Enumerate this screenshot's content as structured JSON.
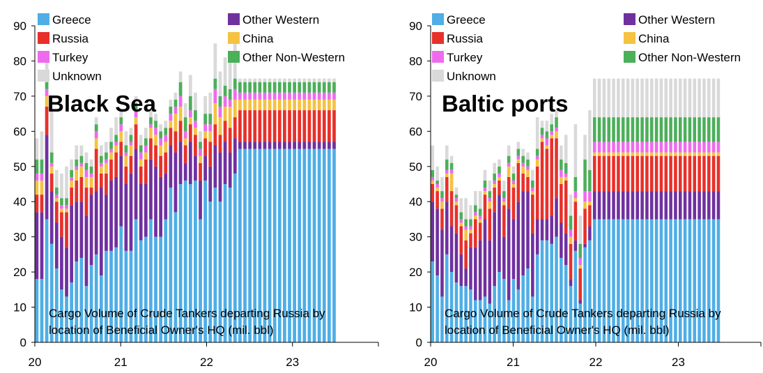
{
  "legend_labels": [
    "Greece",
    "Other Western",
    "Russia",
    "China",
    "Turkey",
    "Other Non-Western",
    "Unknown"
  ],
  "colors": {
    "Greece": "#4FAEE6",
    "Other Western": "#7030A0",
    "Russia": "#E8302A",
    "China": "#F5C242",
    "Turkey": "#EE6BEE",
    "Other Non-Western": "#4CAF5A",
    "Unknown": "#D9D9D9"
  },
  "chart_data": [
    {
      "type": "bar",
      "stacked": true,
      "title": "Black Sea",
      "annotation_line1": "Cargo Volume of Crude Tankers departing Russia by",
      "annotation_line2": "location of Beneficial Owner's HQ (mil. bbl)",
      "ylim": [
        0,
        90
      ],
      "yticks": [
        0,
        10,
        20,
        30,
        40,
        50,
        60,
        70,
        80,
        90
      ],
      "xticks": [
        {
          "label": "20",
          "week": 0
        },
        {
          "label": "21",
          "week": 52
        },
        {
          "label": "22",
          "week": 104
        },
        {
          "label": "23",
          "week": 156
        }
      ],
      "xmax": 208,
      "categories_note": "weekly bars, index in weeks from start of 2020",
      "weeks": [
        0,
        3,
        6,
        9,
        12,
        15,
        18,
        21,
        24,
        27,
        30,
        33,
        36,
        39,
        42,
        45,
        48,
        51,
        54,
        57,
        60,
        63,
        66,
        69,
        72,
        75,
        78,
        81,
        84,
        87,
        90,
        93,
        96,
        99,
        102,
        105,
        108,
        111,
        114,
        117,
        120,
        123,
        126,
        129,
        132,
        135,
        138,
        141,
        144,
        147,
        150,
        153,
        156,
        159,
        162,
        165,
        168,
        171,
        174,
        177,
        180
      ],
      "series": [
        {
          "name": "Greece",
          "values": [
            18,
            18,
            35,
            28,
            21,
            15,
            13,
            17,
            23,
            24,
            16,
            22,
            25,
            19,
            26,
            26,
            27,
            33,
            26,
            26,
            35,
            29,
            30,
            35,
            30,
            30,
            35,
            44,
            37,
            45,
            46,
            45,
            46,
            35,
            46,
            40,
            44,
            40,
            45,
            44,
            48,
            55,
            55,
            55,
            55,
            55,
            55,
            55,
            55,
            55,
            55,
            55,
            55,
            55,
            55,
            55,
            55,
            55,
            55,
            55,
            55
          ]
        },
        {
          "name": "Other Western",
          "values": [
            19,
            19,
            24,
            15,
            13,
            15,
            14,
            22,
            17,
            16,
            20,
            20,
            18,
            25,
            16,
            20,
            20,
            20,
            19,
            22,
            20,
            16,
            15,
            17,
            20,
            17,
            13,
            12,
            17,
            12,
            5,
            12,
            7,
            11,
            7,
            10,
            12,
            14,
            12,
            10,
            10,
            2,
            2,
            2,
            2,
            2,
            2,
            2,
            2,
            2,
            2,
            2,
            2,
            2,
            2,
            2,
            2,
            2,
            2,
            2,
            2
          ]
        },
        {
          "name": "Russia",
          "values": [
            5,
            5,
            8,
            5,
            6,
            7,
            10,
            5,
            6,
            7,
            8,
            2,
            12,
            4,
            6,
            6,
            7,
            4,
            5,
            5,
            7,
            5,
            7,
            6,
            6,
            6,
            6,
            5,
            6,
            6,
            5,
            5,
            6,
            5,
            5,
            7,
            6,
            5,
            6,
            7,
            6,
            9,
            9,
            9,
            9,
            9,
            9,
            9,
            9,
            9,
            9,
            9,
            9,
            9,
            9,
            9,
            9,
            9,
            9,
            9,
            9
          ]
        },
        {
          "name": "China",
          "values": [
            4,
            4,
            3,
            2,
            1,
            1,
            1,
            2,
            3,
            3,
            3,
            3,
            3,
            2,
            3,
            2,
            2,
            3,
            3,
            3,
            2,
            2,
            2,
            3,
            3,
            3,
            3,
            2,
            5,
            4,
            2,
            2,
            2,
            2,
            2,
            3,
            6,
            5,
            4,
            6,
            5,
            3,
            3,
            3,
            3,
            3,
            3,
            3,
            3,
            3,
            3,
            3,
            3,
            3,
            3,
            3,
            3,
            3,
            3,
            3,
            3
          ]
        },
        {
          "name": "Turkey",
          "values": [
            2,
            2,
            2,
            1,
            1,
            1,
            1,
            1,
            1,
            1,
            2,
            1,
            2,
            1,
            1,
            1,
            1,
            2,
            1,
            1,
            2,
            2,
            2,
            1,
            2,
            2,
            2,
            2,
            2,
            3,
            2,
            2,
            2,
            2,
            2,
            2,
            4,
            3,
            3,
            2,
            3,
            2,
            2,
            2,
            2,
            2,
            2,
            2,
            2,
            2,
            2,
            2,
            2,
            2,
            2,
            2,
            2,
            2,
            2,
            2,
            2
          ]
        },
        {
          "name": "Other Non-Western",
          "values": [
            4,
            4,
            2,
            3,
            2,
            2,
            2,
            2,
            2,
            2,
            2,
            2,
            2,
            2,
            2,
            2,
            2,
            2,
            2,
            2,
            2,
            2,
            2,
            2,
            2,
            2,
            2,
            2,
            2,
            4,
            4,
            4,
            3,
            2,
            3,
            3,
            3,
            3,
            3,
            3,
            3,
            3,
            3,
            3,
            3,
            3,
            3,
            3,
            3,
            3,
            3,
            3,
            3,
            3,
            3,
            3,
            3,
            3,
            3,
            3,
            3
          ]
        },
        {
          "name": "Unknown",
          "values": [
            6,
            8,
            8,
            12,
            5,
            7,
            9,
            3,
            4,
            3,
            3,
            2,
            2,
            3,
            3,
            4,
            5,
            2,
            4,
            2,
            2,
            3,
            3,
            2,
            2,
            2,
            2,
            2,
            2,
            3,
            4,
            6,
            5,
            3,
            5,
            6,
            10,
            7,
            8,
            9,
            12,
            1,
            1,
            1,
            1,
            1,
            1,
            1,
            1,
            1,
            1,
            1,
            1,
            1,
            1,
            1,
            1,
            1,
            1,
            1,
            1
          ]
        }
      ]
    },
    {
      "type": "bar",
      "stacked": true,
      "title": "Baltic ports",
      "annotation_line1": "Cargo Volume of Crude Tankers departing Russia by",
      "annotation_line2": "location of Beneficial Owner's HQ (mil. bbl)",
      "ylim": [
        0,
        90
      ],
      "yticks": [
        0,
        10,
        20,
        30,
        40,
        50,
        60,
        70,
        80,
        90
      ],
      "xticks": [
        {
          "label": "20",
          "week": 0
        },
        {
          "label": "21",
          "week": 52
        },
        {
          "label": "22",
          "week": 104
        },
        {
          "label": "23",
          "week": 156
        }
      ],
      "xmax": 208,
      "categories_note": "weekly bars, index in weeks from start of 2020",
      "weeks": [
        0,
        3,
        6,
        9,
        12,
        15,
        18,
        21,
        24,
        27,
        30,
        33,
        36,
        39,
        42,
        45,
        48,
        51,
        54,
        57,
        60,
        63,
        66,
        69,
        72,
        75,
        78,
        81,
        84,
        87,
        90,
        93,
        96,
        99,
        102,
        105,
        108,
        111,
        114,
        117,
        120,
        123,
        126,
        129,
        132,
        135,
        138,
        141,
        144,
        147,
        150,
        153,
        156,
        159,
        162,
        165,
        168,
        171,
        174,
        177,
        180
      ],
      "series": [
        {
          "name": "Greece",
          "values": [
            23,
            19,
            13,
            25,
            20,
            17,
            16,
            16,
            15,
            12,
            12,
            13,
            11,
            16,
            20,
            18,
            12,
            18,
            15,
            19,
            21,
            13,
            25,
            29,
            29,
            28,
            30,
            24,
            22,
            16,
            26,
            11,
            27,
            29,
            35,
            35,
            35,
            35,
            35,
            35,
            35,
            35,
            35,
            35,
            35,
            35,
            35,
            35,
            35,
            35,
            35,
            35,
            35,
            35,
            35,
            35,
            35,
            35,
            35,
            35,
            35
          ]
        },
        {
          "name": "Other Western",
          "values": [
            17,
            19,
            19,
            15,
            13,
            14,
            9,
            5,
            12,
            15,
            17,
            22,
            18,
            21,
            22,
            12,
            26,
            17,
            25,
            24,
            22,
            18,
            10,
            6,
            6,
            8,
            11,
            10,
            9,
            2,
            3,
            1,
            1,
            4,
            8,
            8,
            8,
            8,
            8,
            8,
            8,
            8,
            8,
            8,
            8,
            8,
            8,
            8,
            8,
            8,
            8,
            8,
            8,
            8,
            8,
            8,
            8,
            8,
            8,
            8,
            8
          ]
        },
        {
          "name": "Russia",
          "values": [
            5,
            5,
            6,
            7,
            10,
            8,
            8,
            8,
            4,
            8,
            5,
            7,
            9,
            7,
            4,
            9,
            9,
            9,
            11,
            5,
            4,
            11,
            15,
            22,
            20,
            22,
            17,
            11,
            15,
            10,
            11,
            9,
            10,
            6,
            10,
            10,
            10,
            10,
            10,
            10,
            10,
            10,
            10,
            10,
            10,
            10,
            10,
            10,
            10,
            10,
            10,
            10,
            10,
            10,
            10,
            10,
            10,
            10,
            10,
            10,
            10
          ]
        },
        {
          "name": "China",
          "values": [
            1,
            1,
            2,
            1,
            5,
            1,
            1,
            3,
            1,
            1,
            1,
            1,
            2,
            1,
            1,
            1,
            3,
            1,
            1,
            2,
            2,
            1,
            2,
            1,
            1,
            1,
            2,
            2,
            1,
            2,
            1,
            1,
            2,
            1,
            1,
            1,
            1,
            1,
            1,
            1,
            1,
            1,
            1,
            1,
            1,
            1,
            1,
            1,
            1,
            1,
            1,
            1,
            1,
            1,
            1,
            1,
            1,
            1,
            1,
            1,
            1
          ]
        },
        {
          "name": "Turkey",
          "values": [
            1,
            1,
            1,
            1,
            1,
            1,
            1,
            1,
            1,
            1,
            1,
            1,
            1,
            1,
            1,
            1,
            1,
            1,
            1,
            1,
            1,
            1,
            1,
            1,
            2,
            1,
            1,
            2,
            1,
            2,
            2,
            2,
            3,
            3,
            3,
            3,
            3,
            3,
            3,
            3,
            3,
            3,
            3,
            3,
            3,
            3,
            3,
            3,
            3,
            3,
            3,
            3,
            3,
            3,
            3,
            3,
            3,
            3,
            3,
            3,
            3
          ]
        },
        {
          "name": "Other Non-Western",
          "values": [
            2,
            1,
            2,
            3,
            2,
            1,
            2,
            2,
            2,
            2,
            2,
            2,
            2,
            2,
            2,
            2,
            2,
            2,
            2,
            2,
            2,
            2,
            2,
            2,
            2,
            2,
            3,
            3,
            3,
            4,
            4,
            4,
            9,
            6,
            7,
            7,
            7,
            7,
            7,
            7,
            7,
            7,
            7,
            7,
            7,
            7,
            7,
            7,
            7,
            7,
            7,
            7,
            7,
            7,
            7,
            7,
            7,
            7,
            7,
            7,
            7
          ]
        },
        {
          "name": "Unknown",
          "values": [
            7,
            4,
            4,
            4,
            2,
            2,
            4,
            6,
            4,
            4,
            5,
            3,
            3,
            3,
            2,
            3,
            3,
            2,
            2,
            2,
            2,
            3,
            9,
            2,
            3,
            3,
            2,
            4,
            8,
            6,
            15,
            8,
            7,
            17,
            11,
            11,
            11,
            11,
            11,
            11,
            11,
            11,
            11,
            11,
            11,
            11,
            11,
            11,
            11,
            11,
            11,
            11,
            11,
            11,
            11,
            11,
            11,
            11,
            11,
            11,
            11
          ]
        }
      ]
    }
  ]
}
